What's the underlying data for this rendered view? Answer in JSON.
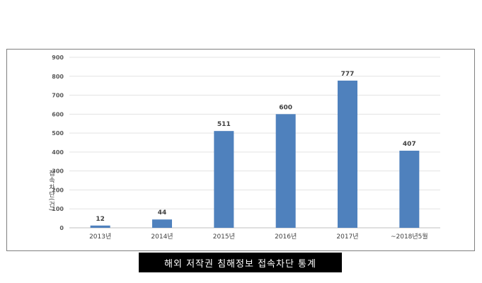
{
  "caption": "해외 저작권 침해정보 접속차단 통계",
  "chart_data": {
    "type": "bar",
    "categories": [
      "2013년",
      "2014년",
      "2015년",
      "2016년",
      "2017년",
      "~2018년5월"
    ],
    "values": [
      12,
      44,
      511,
      600,
      777,
      407
    ],
    "ylabel": "접속차단(건)",
    "xlabel": "",
    "ylim": [
      0,
      900
    ],
    "yticks": [
      0,
      100,
      200,
      300,
      400,
      500,
      600,
      700,
      800,
      900
    ],
    "grid": true,
    "bar_color": "#4f81bd",
    "legend": "none"
  }
}
